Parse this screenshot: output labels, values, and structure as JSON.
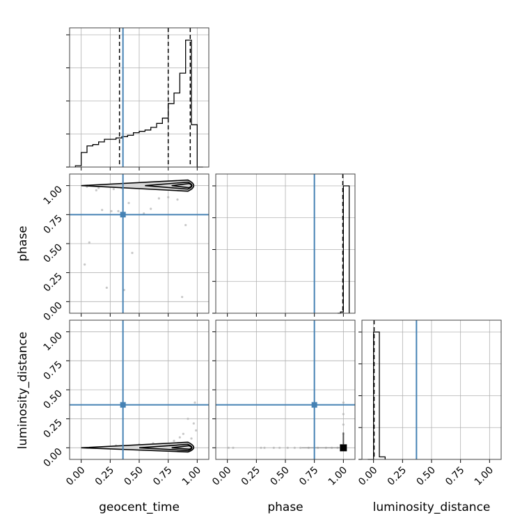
{
  "chart_data": {
    "type": "corner",
    "parameters": [
      "geocent_time",
      "phase",
      "luminosity_distance"
    ],
    "ticks": [
      "0.00",
      "0.25",
      "0.50",
      "0.75",
      "1.00"
    ],
    "tick_values": [
      0,
      0.25,
      0.5,
      0.75,
      1.0
    ],
    "axis_range": [
      -0.1,
      1.1
    ],
    "grid": true,
    "colors": {
      "truth": "#4682b4",
      "hist": "#000000",
      "points": "#b0b0b0",
      "grid": "#b0b0b0"
    },
    "truths": {
      "geocent_time": 0.36,
      "phase": 0.75,
      "luminosity_distance": 0.37
    },
    "quantiles": {
      "geocent_time": [
        0.33,
        0.75,
        0.94
      ],
      "phase": [
        0.995
      ],
      "luminosity_distance": [
        0.005
      ]
    },
    "histograms": {
      "geocent_time": {
        "edges": [
          -0.05,
          0.0,
          0.05,
          0.1,
          0.15,
          0.2,
          0.25,
          0.3,
          0.35,
          0.4,
          0.45,
          0.5,
          0.55,
          0.6,
          0.65,
          0.7,
          0.75,
          0.8,
          0.85,
          0.9,
          0.95,
          1.0,
          1.05
        ],
        "counts": [
          0.01,
          0.11,
          0.16,
          0.17,
          0.19,
          0.21,
          0.21,
          0.22,
          0.23,
          0.24,
          0.26,
          0.27,
          0.28,
          0.3,
          0.33,
          0.37,
          0.48,
          0.56,
          0.71,
          0.96,
          0.32,
          0.0
        ]
      },
      "phase": {
        "edges": [
          0.95,
          0.975,
          1.0,
          1.05
        ],
        "counts": [
          0.0,
          0.01,
          1.0
        ]
      },
      "luminosity_distance": {
        "edges": [
          -0.05,
          0.0,
          0.05,
          0.1
        ],
        "counts": [
          0.0,
          1.0,
          0.02
        ]
      }
    },
    "scatter": {
      "phase_vs_geocent_time": {
        "points": [
          [
            0.18,
            0.79
          ],
          [
            0.26,
            0.78
          ],
          [
            0.07,
            0.51
          ],
          [
            0.03,
            0.32
          ],
          [
            0.44,
            0.42
          ],
          [
            0.32,
            0.78
          ],
          [
            0.41,
            0.85
          ],
          [
            0.54,
            0.76
          ],
          [
            0.6,
            0.8
          ],
          [
            0.67,
            0.89
          ],
          [
            0.75,
            0.9
          ],
          [
            0.9,
            0.66
          ],
          [
            0.83,
            0.88
          ],
          [
            0.87,
            0.04
          ],
          [
            0.22,
            0.12
          ],
          [
            0.37,
            0.1
          ],
          [
            0.13,
            0.96
          ],
          [
            0.28,
            0.97
          ],
          [
            0.5,
            0.99
          ],
          [
            0.7,
            0.98
          ],
          [
            0.95,
            0.97
          ],
          [
            0.05,
            0.99
          ],
          [
            0.15,
            0.98
          ],
          [
            0.35,
            0.98
          ]
        ]
      },
      "luminosity_distance_vs_geocent_time": {
        "points": [
          [
            0.98,
            0.39
          ],
          [
            0.92,
            0.25
          ],
          [
            0.97,
            0.21
          ],
          [
            0.88,
            0.12
          ],
          [
            0.85,
            0.09
          ],
          [
            0.95,
            0.08
          ],
          [
            0.5,
            0.03
          ],
          [
            0.3,
            0.02
          ],
          [
            0.62,
            0.04
          ],
          [
            0.72,
            0.03
          ],
          [
            0.99,
            0.15
          ],
          [
            0.8,
            0.06
          ]
        ]
      },
      "luminosity_distance_vs_phase": {
        "points": [
          [
            0.01,
            0.0
          ],
          [
            0.05,
            0.0
          ],
          [
            0.29,
            0.0
          ],
          [
            0.32,
            0.0
          ],
          [
            0.4,
            0.0
          ],
          [
            0.45,
            0.0
          ],
          [
            0.52,
            0.0
          ],
          [
            0.58,
            0.0
          ],
          [
            0.63,
            0.0
          ],
          [
            0.7,
            0.0
          ],
          [
            0.78,
            0.0
          ],
          [
            0.85,
            0.0
          ],
          [
            0.9,
            0.0
          ],
          [
            0.95,
            0.0
          ],
          [
            1.0,
            0.39
          ],
          [
            1.0,
            0.29
          ],
          [
            1.0,
            0.2
          ],
          [
            1.0,
            0.12
          ]
        ]
      }
    }
  }
}
